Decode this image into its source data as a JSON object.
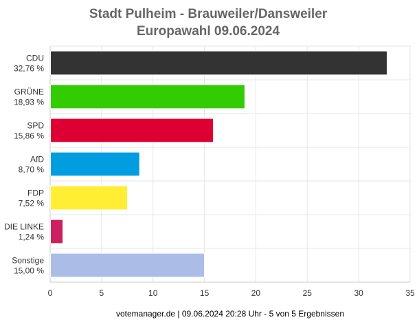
{
  "chart_data": {
    "type": "bar",
    "orientation": "horizontal",
    "title": "Stadt Pulheim - Brauweiler/Dansweiler",
    "subtitle": "Europawahl 09.06.2024",
    "categories": [
      "CDU",
      "GRÜNE",
      "SPD",
      "AfD",
      "FDP",
      "DIE LINKE",
      "Sonstige"
    ],
    "value_labels": [
      "32,76 %",
      "18,93 %",
      "15,86 %",
      "8,70 %",
      "7,52 %",
      "1,24 %",
      "15,00 %"
    ],
    "values": [
      32.76,
      18.93,
      15.86,
      8.7,
      7.52,
      1.24,
      15.0
    ],
    "colors": [
      "#333333",
      "#33cc00",
      "#dd0033",
      "#009ee0",
      "#ffee33",
      "#cc1f5f",
      "#abbde6"
    ],
    "xlim": [
      0,
      35
    ],
    "xticks": [
      0,
      5,
      10,
      15,
      20,
      25,
      30,
      35
    ],
    "grid": true,
    "legend": "none"
  },
  "footer": "votemanager.de | 09.06.2024 20:28 Uhr - 5 von 5 Ergebnissen"
}
